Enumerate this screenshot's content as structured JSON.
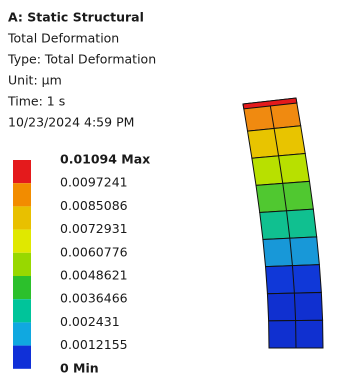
{
  "header": {
    "title": "A: Static Structural",
    "lines": [
      "Total Deformation",
      "Type: Total Deformation",
      "Unit: µm",
      "Time: 1 s",
      "10/23/2024 4:59 PM"
    ]
  },
  "legend": {
    "max_label": "0.01094 Max",
    "labels": [
      "0.0097241",
      "0.0085086",
      "0.0072931",
      "0.0060776",
      "0.0048621",
      "0.0036466",
      "0.002431",
      "0.0012155"
    ],
    "min_label": "0 Min"
  }
}
